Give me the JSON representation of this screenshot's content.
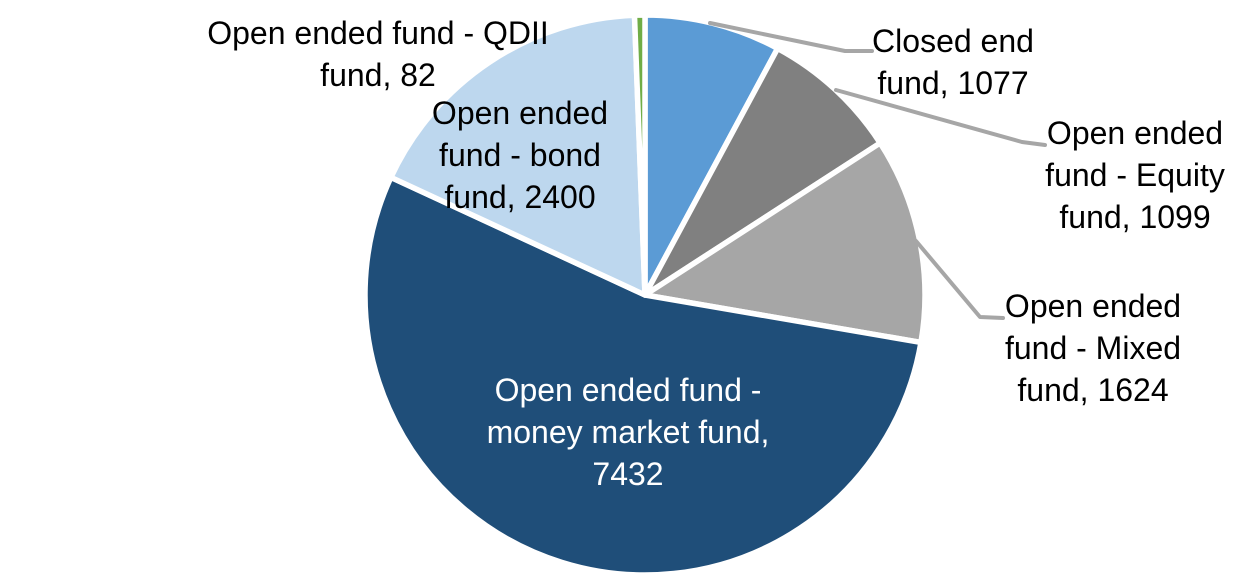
{
  "chart_data": {
    "type": "pie",
    "start_angle_deg": 0,
    "direction": "clockwise",
    "background_color": "#FFFFFF",
    "slice_border_color": "#FFFFFF",
    "leader_line_color": "#A6A6A6",
    "label_text_color": "#000000",
    "slices": [
      {
        "id": "closed-end-fund",
        "name": "Closed end fund",
        "value": 1077,
        "color": "#5B9BD5",
        "label": "Closed end\nfund, 1077",
        "label_text_color": "#000000"
      },
      {
        "id": "open-ended-fund-equity-fund",
        "name": "Open ended fund - Equity fund",
        "value": 1099,
        "color": "#808080",
        "label": "Open ended\nfund - Equity\nfund, 1099",
        "label_text_color": "#000000"
      },
      {
        "id": "open-ended-fund-mixed-fund",
        "name": "Open ended fund - Mixed fund",
        "value": 1624,
        "color": "#A6A6A6",
        "label": "Open ended\nfund - Mixed\nfund, 1624",
        "label_text_color": "#000000"
      },
      {
        "id": "open-ended-fund-money-market-fund",
        "name": "Open ended fund - money market fund",
        "value": 7432,
        "color": "#1F4E79",
        "label": "Open ended fund -\nmoney market fund,\n7432",
        "label_text_color": "#FFFFFF"
      },
      {
        "id": "open-ended-fund-bond-fund",
        "name": "Open ended fund - bond fund",
        "value": 2400,
        "color": "#BDD7EE",
        "label": "Open ended\nfund - bond\nfund, 2400",
        "label_text_color": "#000000"
      },
      {
        "id": "open-ended-fund-qdii-fund",
        "name": "Open ended fund - QDII fund",
        "value": 82,
        "color": "#70AD47",
        "label": "Open ended fund - QDII\nfund, 82",
        "label_text_color": "#000000"
      }
    ]
  }
}
